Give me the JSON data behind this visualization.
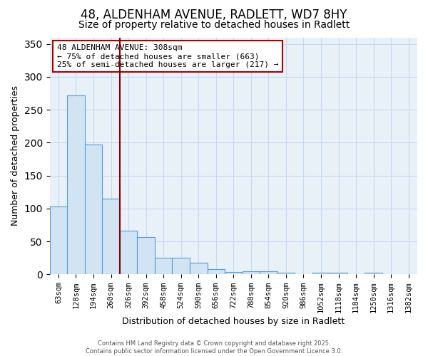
{
  "title1": "48, ALDENHAM AVENUE, RADLETT, WD7 8HY",
  "title2": "Size of property relative to detached houses in Radlett",
  "xlabel": "Distribution of detached houses by size in Radlett",
  "ylabel": "Number of detached properties",
  "categories": [
    "63sqm",
    "128sqm",
    "194sqm",
    "260sqm",
    "326sqm",
    "392sqm",
    "458sqm",
    "524sqm",
    "590sqm",
    "656sqm",
    "722sqm",
    "788sqm",
    "854sqm",
    "920sqm",
    "986sqm",
    "1052sqm",
    "1118sqm",
    "1184sqm",
    "1250sqm",
    "1316sqm",
    "1382sqm"
  ],
  "values": [
    103,
    272,
    197,
    115,
    67,
    57,
    25,
    25,
    18,
    8,
    4,
    5,
    5,
    3,
    0,
    3,
    3,
    0,
    3,
    0,
    0
  ],
  "bar_color": "#d0e4f4",
  "bar_edge_color": "#5b9bd5",
  "red_line_index": 4,
  "annotation_text": "48 ALDENHAM AVENUE: 308sqm\n← 75% of detached houses are smaller (663)\n25% of semi-detached houses are larger (217) →",
  "annotation_box_color": "#ffffff",
  "annotation_box_edge": "#aa0000",
  "red_line_color": "#880000",
  "ylim": [
    0,
    360
  ],
  "yticks": [
    0,
    50,
    100,
    150,
    200,
    250,
    300,
    350
  ],
  "grid_color": "#c8daf0",
  "plot_bg_color": "#e8f0f8",
  "fig_bg_color": "#ffffff",
  "footer_text": "Contains HM Land Registry data © Crown copyright and database right 2025.\nContains public sector information licensed under the Open Government Licence 3.0.",
  "title1_fontsize": 12,
  "title2_fontsize": 10,
  "annotation_fontsize": 8
}
